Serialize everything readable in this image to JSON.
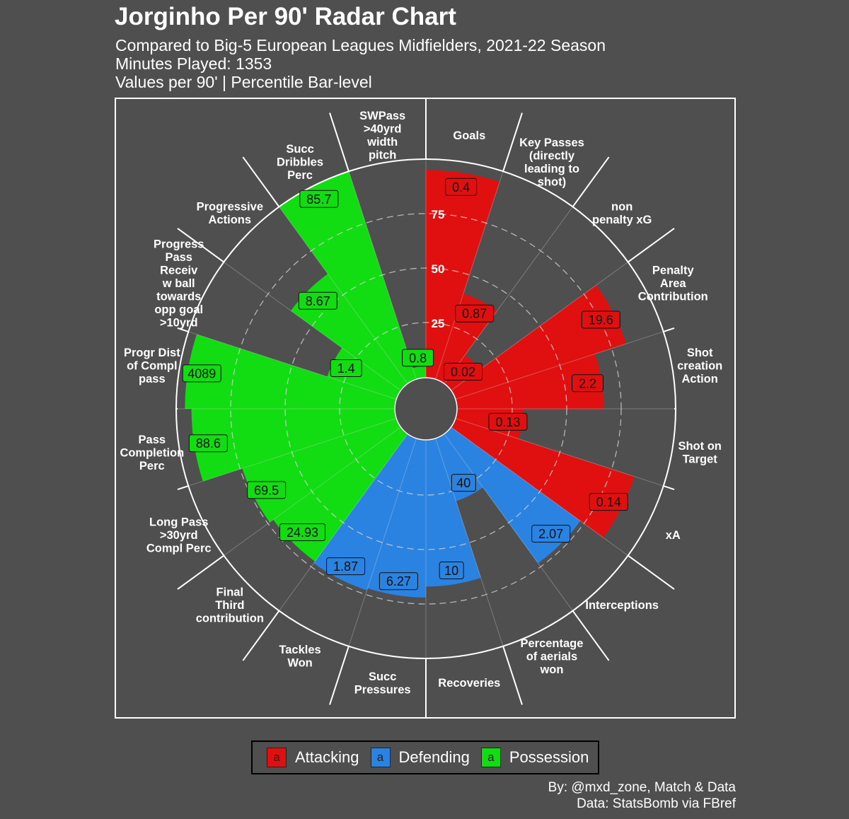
{
  "title": "Jorginho Per 90' Radar Chart",
  "subtitle": "Compared to Big-5 European Leagues Midfielders, 2021-22 Season",
  "minutes": "Minutes Played: 1353",
  "note": "Values per 90' | Percentile Bar-level",
  "caption_by": "By: @mxd_zone, Match & Data",
  "caption_source": "Data: StatsBomb via FBref",
  "legend": [
    {
      "label": "Attacking",
      "key_text": "a",
      "color": "#e01010"
    },
    {
      "label": "Defending",
      "key_text": "a",
      "color": "#2a83e0"
    },
    {
      "label": "Possession",
      "key_text": "a",
      "color": "#12dc12"
    }
  ],
  "chart_data": {
    "type": "polar-bar",
    "percentile_range": [
      0,
      100
    ],
    "gridlines": [
      25,
      50,
      75
    ],
    "gridline_labels": [
      "25",
      "50",
      "75"
    ],
    "categories": [
      {
        "name": "Goals",
        "label": "Goals",
        "group": "Attacking",
        "value": "0.4",
        "percentile": 95
      },
      {
        "name": "key-passes",
        "label": "Key Passes\n(directly\nleading to\nshot)",
        "group": "Attacking",
        "value": "0.87",
        "percentile": 41
      },
      {
        "name": "npxg",
        "label": "non\npenalty xG",
        "group": "Attacking",
        "value": "0.02",
        "percentile": 16
      },
      {
        "name": "penalty-area",
        "label": "Penalty\nArea\nContribution",
        "group": "Attacking",
        "value": "19.6",
        "percentile": 82
      },
      {
        "name": "sca",
        "label": "Shot\ncreation\nAction",
        "group": "Attacking",
        "value": "2.2",
        "percentile": 67
      },
      {
        "name": "shot-on-target",
        "label": "Shot on\nTarget",
        "group": "Attacking",
        "value": "0.13",
        "percentile": 30
      },
      {
        "name": "xa",
        "label": "xA",
        "group": "Attacking",
        "value": "0.14",
        "percentile": 86
      },
      {
        "name": "interceptions",
        "label": "Interceptions",
        "group": "Defending",
        "value": "2.07",
        "percentile": 73
      },
      {
        "name": "aerials",
        "label": "Percentage\nof aerials\nwon",
        "group": "Defending",
        "value": "40",
        "percentile": 30
      },
      {
        "name": "recoveries",
        "label": "Recoveries",
        "group": "Defending",
        "value": "10",
        "percentile": 67
      },
      {
        "name": "succ-pressures",
        "label": "Succ\nPressures",
        "group": "Defending",
        "value": "6.27",
        "percentile": 72
      },
      {
        "name": "tackles-won",
        "label": "Tackles\nWon",
        "group": "Defending",
        "value": "1.87",
        "percentile": 73
      },
      {
        "name": "final-third",
        "label": "Final\nThird\ncontribution",
        "group": "Possession",
        "value": "24.93",
        "percentile": 72
      },
      {
        "name": "long-pass",
        "label": "Long Pass\n>30yrd\nCompl Perc",
        "group": "Possession",
        "value": "69.5",
        "percentile": 74
      },
      {
        "name": "pass-completion",
        "label": "Pass\nCompletion\nPerc",
        "group": "Possession",
        "value": "88.6",
        "percentile": 93
      },
      {
        "name": "progr-dist",
        "label": "Progr Dist\nof Compl\npass",
        "group": "Possession",
        "value": "4089",
        "percentile": 96
      },
      {
        "name": "progress-pass-receiv",
        "label": "Progress\nPass\nReceiv\nw ball\ntowards\nopp goal\n>10yrd",
        "group": "Possession",
        "value": "1.4",
        "percentile": 33
      },
      {
        "name": "progressive-actions",
        "label": "Progressive\nActions",
        "group": "Possession",
        "value": "8.67",
        "percentile": 62
      },
      {
        "name": "succ-dribbles",
        "label": "Succ\nDribbles\nPerc",
        "group": "Possession",
        "value": "85.7",
        "percentile": 100
      },
      {
        "name": "swpass",
        "label": "SWPass\n>40yrd\nwidth\npitch",
        "group": "Possession",
        "value": "0.8",
        "percentile": 5
      }
    ]
  }
}
